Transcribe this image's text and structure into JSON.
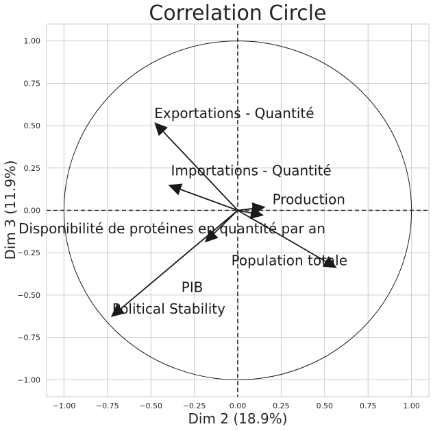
{
  "chart_data": {
    "type": "scatter",
    "title": "Correlation Circle",
    "xlabel": "Dim 2 (18.9%)",
    "ylabel": "Dim 3 (11.9%)",
    "xlim": [
      -1.1,
      1.1
    ],
    "ylim": [
      -1.1,
      1.1
    ],
    "xticks": [
      -1.0,
      -0.75,
      -0.5,
      -0.25,
      0.0,
      0.25,
      0.5,
      0.75,
      1.0
    ],
    "yticks": [
      -1.0,
      -0.75,
      -0.5,
      -0.25,
      0.0,
      0.25,
      0.5,
      0.75,
      1.0
    ],
    "xtick_labels": [
      "−1.00",
      "−0.75",
      "−0.50",
      "−0.25",
      "0.00",
      "0.25",
      "0.50",
      "0.75",
      "1.00"
    ],
    "ytick_labels": [
      "−1.00",
      "−0.75",
      "−0.50",
      "−0.25",
      "0.00",
      "0.25",
      "0.50",
      "0.75",
      "1.00"
    ],
    "grid": true,
    "unit_circle": true,
    "colors": {
      "arrow": "#1a1a1a",
      "grid": "#cccccc",
      "circle": "#1a1a1a",
      "spine": "#cccccc"
    },
    "variables": [
      {
        "label": "Exportations - Quantité",
        "x": -0.48,
        "y": 0.52
      },
      {
        "label": "Importations - Quantité",
        "x": -0.4,
        "y": 0.15
      },
      {
        "label": "Production",
        "x": 0.16,
        "y": 0.02
      },
      {
        "label": "Disponibilité de protéines en quantité par an",
        "x": 0.15,
        "y": -0.03
      },
      {
        "label": "Population totale",
        "x": 0.57,
        "y": -0.34
      },
      {
        "label": "PIB",
        "x": -0.19,
        "y": -0.19
      },
      {
        "label": "Political Stability",
        "x": -0.73,
        "y": -0.63
      }
    ]
  }
}
